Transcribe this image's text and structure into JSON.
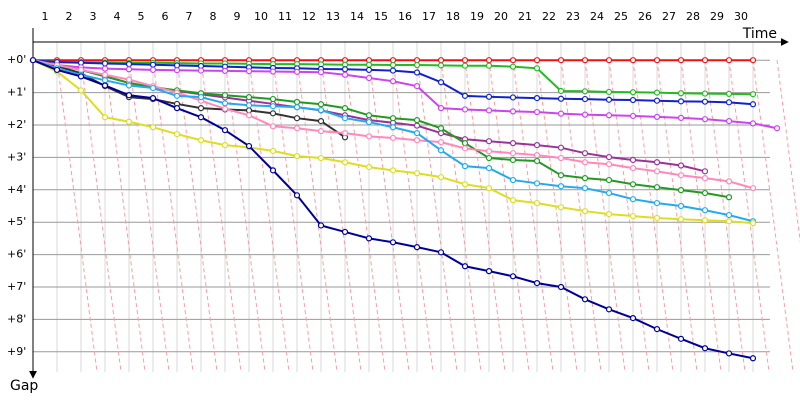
{
  "chart_data": {
    "type": "line",
    "xlabel": "Time",
    "ylabel": "Gap",
    "xlim": [
      0,
      31.5
    ],
    "xticks": [
      1,
      2,
      3,
      4,
      5,
      6,
      7,
      8,
      9,
      10,
      11,
      12,
      13,
      14,
      15,
      16,
      17,
      18,
      19,
      20,
      21,
      22,
      23,
      24,
      25,
      26,
      27,
      28,
      29,
      30
    ],
    "ylim": [
      -0.5,
      9.5
    ],
    "yticks": [
      {
        "value": 0,
        "label": "+0'"
      },
      {
        "value": 1,
        "label": "+1'"
      },
      {
        "value": 2,
        "label": "+2'"
      },
      {
        "value": 3,
        "label": "+3'"
      },
      {
        "value": 4,
        "label": "+4'"
      },
      {
        "value": 5,
        "label": "+5'"
      },
      {
        "value": 6,
        "label": "+6'"
      },
      {
        "value": 7,
        "label": "+7'"
      },
      {
        "value": 8,
        "label": "+8'"
      },
      {
        "value": 9,
        "label": "+9'"
      }
    ],
    "grid": true,
    "series": [
      {
        "color": "#ee1111",
        "values": [
          0,
          0,
          0,
          0,
          0,
          0,
          0,
          0,
          0,
          0,
          0,
          0,
          0,
          0,
          0,
          0,
          0,
          0,
          0,
          0,
          0,
          0,
          0,
          0,
          0,
          0,
          0,
          0,
          0,
          0,
          0,
          null
        ]
      },
      {
        "color": "#22bb22",
        "values": [
          0,
          0.05,
          0.06,
          0.07,
          0.08,
          0.08,
          0.09,
          0.1,
          0.1,
          0.11,
          0.12,
          0.12,
          0.13,
          0.14,
          0.14,
          0.15,
          0.15,
          0.16,
          0.17,
          0.17,
          0.2,
          0.25,
          0.95,
          0.96,
          0.98,
          0.99,
          1,
          1.02,
          1.03,
          1.04,
          1.05,
          null
        ]
      },
      {
        "color": "#1122cc",
        "values": [
          0,
          0.06,
          0.08,
          0.1,
          0.12,
          0.14,
          0.16,
          0.18,
          0.2,
          0.22,
          0.24,
          0.25,
          0.27,
          0.28,
          0.3,
          0.32,
          0.38,
          0.68,
          1.1,
          1.13,
          1.15,
          1.17,
          1.19,
          1.2,
          1.22,
          1.23,
          1.25,
          1.27,
          1.28,
          1.3,
          1.36,
          null
        ]
      },
      {
        "color": "#cc44ee",
        "values": [
          0,
          0.15,
          0.22,
          0.26,
          0.28,
          0.3,
          0.31,
          0.32,
          0.33,
          0.34,
          0.35,
          0.36,
          0.37,
          0.45,
          0.55,
          0.65,
          0.8,
          1.48,
          1.52,
          1.55,
          1.58,
          1.6,
          1.65,
          1.68,
          1.7,
          1.72,
          1.75,
          1.78,
          1.82,
          1.88,
          1.95,
          2.1
        ]
      },
      {
        "color": "#993399",
        "values": [
          0,
          0.15,
          0.3,
          0.5,
          0.7,
          0.85,
          0.95,
          1.05,
          1.15,
          1.25,
          1.35,
          1.45,
          1.55,
          1.7,
          1.85,
          1.93,
          2.02,
          2.25,
          2.44,
          2.5,
          2.56,
          2.62,
          2.7,
          2.87,
          2.99,
          3.08,
          3.15,
          3.25,
          3.43,
          null,
          null,
          null
        ]
      },
      {
        "color": "#333333",
        "values": [
          0,
          0.18,
          0.4,
          0.8,
          1.14,
          1.2,
          1.35,
          1.48,
          1.52,
          1.55,
          1.64,
          1.79,
          1.88,
          2.38,
          null,
          null,
          null,
          null,
          null,
          null,
          null,
          null,
          null,
          null,
          null,
          null,
          null,
          null,
          null,
          null,
          null,
          null
        ]
      },
      {
        "color": "#229922",
        "values": [
          0,
          0.15,
          0.3,
          0.5,
          0.7,
          0.83,
          0.93,
          1.02,
          1.08,
          1.14,
          1.2,
          1.29,
          1.36,
          1.48,
          1.7,
          1.79,
          1.85,
          2.1,
          2.56,
          3.02,
          3.08,
          3.11,
          3.55,
          3.64,
          3.7,
          3.83,
          3.92,
          4.01,
          4.1,
          4.23,
          null,
          null
        ]
      },
      {
        "color": "#ff88bb",
        "values": [
          0,
          0.15,
          0.3,
          0.45,
          0.6,
          0.8,
          1,
          1.25,
          1.5,
          1.7,
          2.04,
          2.1,
          2.19,
          2.25,
          2.35,
          2.4,
          2.47,
          2.53,
          2.72,
          2.81,
          2.87,
          2.93,
          3.02,
          3.15,
          3.21,
          3.33,
          3.43,
          3.55,
          3.64,
          3.74,
          3.95,
          null
        ]
      },
      {
        "color": "#22aaee",
        "values": [
          0,
          0.25,
          0.45,
          0.62,
          0.78,
          0.86,
          1.1,
          1.14,
          1.33,
          1.39,
          1.42,
          1.45,
          1.54,
          1.79,
          1.91,
          2.07,
          2.25,
          2.78,
          3.27,
          3.33,
          3.7,
          3.8,
          3.89,
          3.95,
          4.1,
          4.29,
          4.41,
          4.5,
          4.63,
          4.78,
          4.97,
          null
        ]
      },
      {
        "color": "#dddd22",
        "values": [
          0,
          0.35,
          0.93,
          1.76,
          1.9,
          2.07,
          2.28,
          2.47,
          2.62,
          2.69,
          2.8,
          2.96,
          3.02,
          3.15,
          3.3,
          3.4,
          3.49,
          3.61,
          3.83,
          3.95,
          4.32,
          4.41,
          4.54,
          4.66,
          4.75,
          4.81,
          4.87,
          4.91,
          4.94,
          4.97,
          5.03,
          null
        ]
      },
      {
        "color": "#000099",
        "values": [
          0,
          0.3,
          0.5,
          0.78,
          1.08,
          1.17,
          1.48,
          1.76,
          2.16,
          2.65,
          3.4,
          4.17,
          5.1,
          5.3,
          5.5,
          5.62,
          5.77,
          5.93,
          6.36,
          6.51,
          6.67,
          6.88,
          7,
          7.38,
          7.69,
          7.96,
          8.3,
          8.6,
          8.89,
          9.05,
          9.2,
          null
        ]
      }
    ]
  }
}
